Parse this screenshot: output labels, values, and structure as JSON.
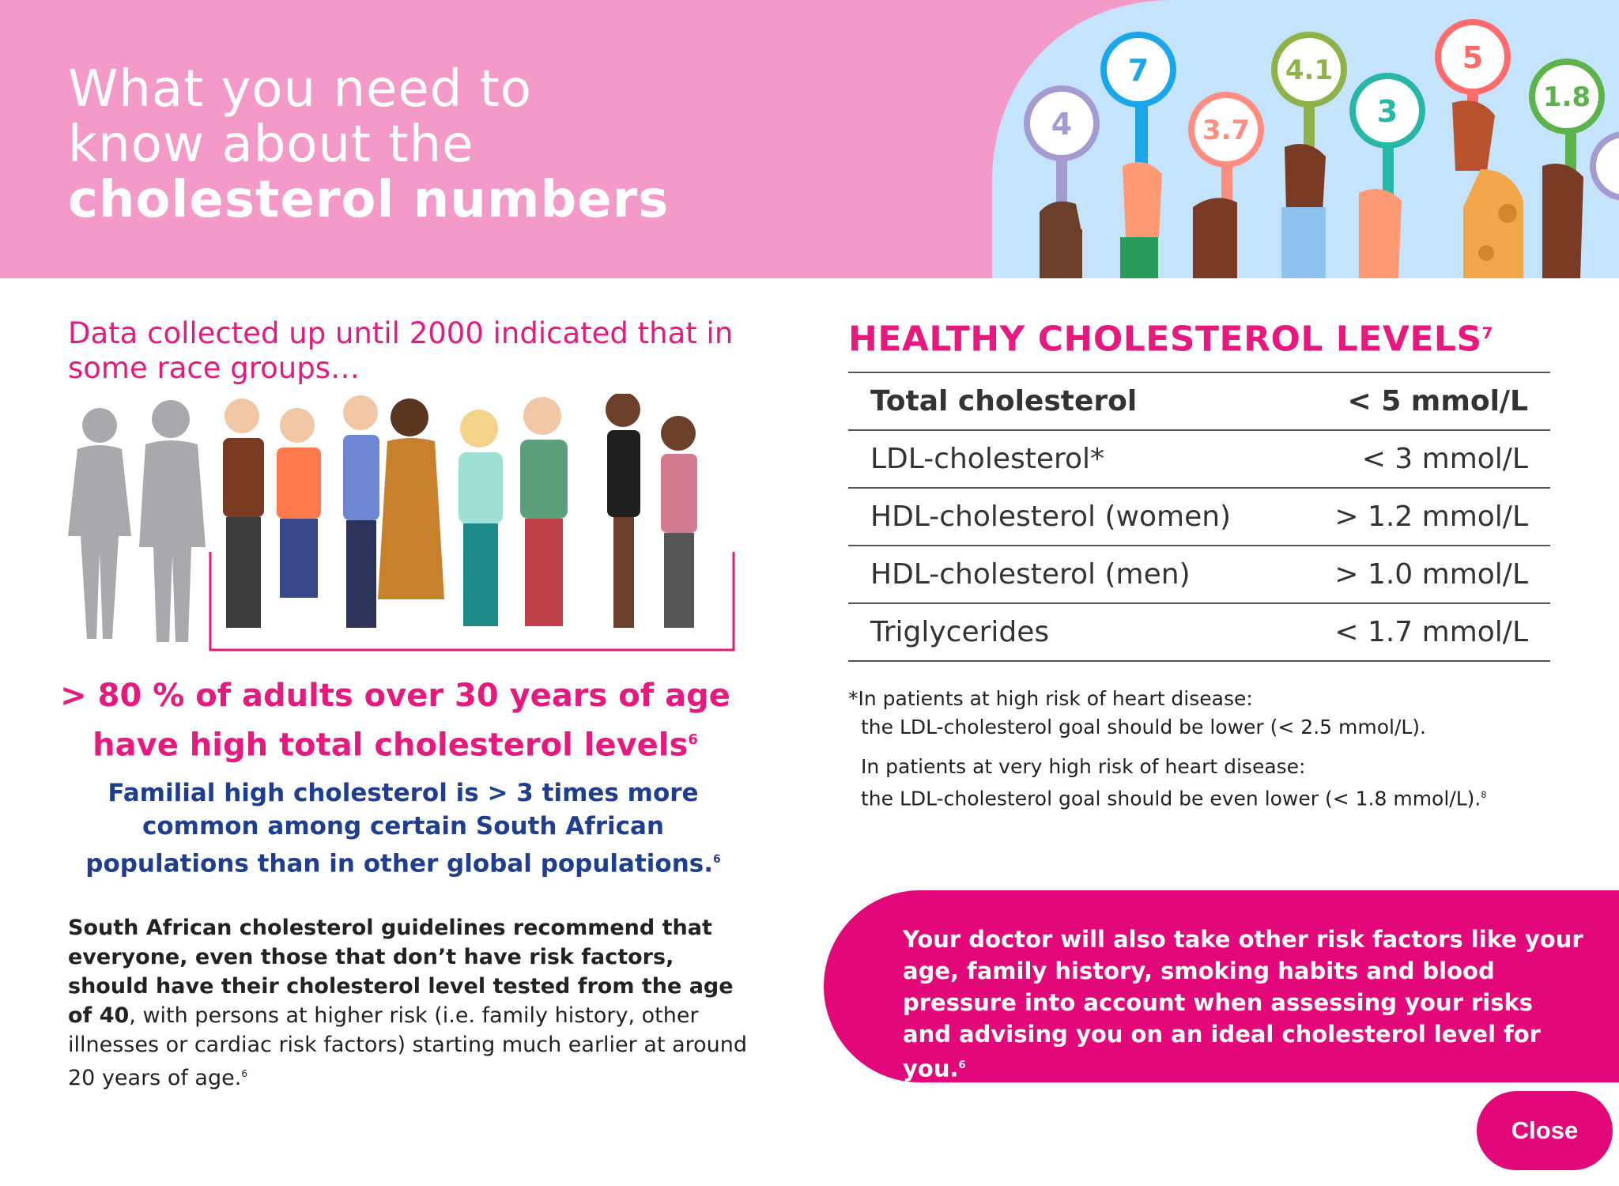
{
  "header": {
    "title_line1": "What you need to",
    "title_line2": "know about the",
    "title_line3": "cholesterol numbers",
    "signs": [
      "4",
      "7",
      "3.7",
      "4.1",
      "3",
      "5",
      "1.8"
    ]
  },
  "left": {
    "intro": "Data collected up until 2000 indicated that in some race groups…",
    "stat_text": "> 80 % of adults over 30 years of age have high total cholesterol levels",
    "stat_ref": "6",
    "familial_text": "Familial high cholesterol is > 3 times more common among certain South African populations than in other global populations.",
    "familial_ref": "6",
    "guide_bold": "South African cholesterol guidelines recommend that everyone, even those that don’t have risk factors, should have their cholesterol level tested from the age of 40",
    "guide_rest": ", with persons at higher risk (i.e. family history, other illnesses or cardiac risk factors) starting much earlier at around 20 years of age.",
    "guide_ref": "6"
  },
  "levels": {
    "title": "HEALTHY CHOLESTEROL LEVELS",
    "title_ref": "7",
    "rows": [
      {
        "label": "Total cholesterol",
        "value": "< 5 mmol/L"
      },
      {
        "label": "LDL-cholesterol*",
        "value": "< 3 mmol/L"
      },
      {
        "label": "HDL-cholesterol (women)",
        "value": "> 1.2 mmol/L"
      },
      {
        "label": "HDL-cholesterol (men)",
        "value": "> 1.0 mmol/L"
      },
      {
        "label": "Triglycerides",
        "value": "< 1.7 mmol/L"
      }
    ]
  },
  "notes": {
    "high_head": "*In patients at high risk of heart disease:",
    "high_body": "the LDL-cholesterol goal should be lower (< 2.5 mmol/L).",
    "very_head": "In patients at very high risk of heart disease:",
    "very_body": "the LDL-cholesterol goal should be even lower (< 1.8 mmol/L).",
    "very_ref": "8"
  },
  "doctor": {
    "text": "Your doctor will also take other risk factors like your age, family history, smoking habits and blood pressure into account when assessing your risks and advising you on an ideal cholesterol level for you.",
    "ref": "6"
  },
  "close_label": "Close",
  "colors": {
    "pink_header": "#f49ac9",
    "magenta": "#e2087a",
    "navy": "#1f3e8f",
    "sky": "#c5e3fb"
  }
}
